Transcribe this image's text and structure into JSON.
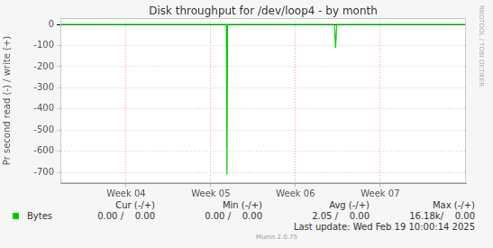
{
  "chart_data": {
    "type": "line",
    "title": "Disk throughput for /dev/loop4 - by month",
    "ylabel": "Pr second read (-) / write (+)",
    "x": [
      0,
      13.75,
      13.8,
      13.85,
      22.7,
      22.8,
      22.9,
      33.6
    ],
    "series": [
      {
        "name": "Bytes",
        "color": "#00cc00",
        "values": [
          0,
          0,
          -710,
          0,
          0,
          -110,
          0,
          0
        ]
      }
    ],
    "xlim": [
      0,
      33.6
    ],
    "xticks": [
      {
        "value": 5.45,
        "label": "Week 04"
      },
      {
        "value": 12.46,
        "label": "Week 05"
      },
      {
        "value": 19.48,
        "label": "Week 06"
      },
      {
        "value": 26.5,
        "label": "Week 07"
      }
    ],
    "ylim": [
      -750,
      30
    ],
    "yticks": [
      -700,
      -600,
      -500,
      -400,
      -300,
      -200,
      -100,
      0
    ],
    "grid": true,
    "legend": "bottom",
    "legend_table": {
      "headers": [
        "Cur (-/+)",
        "Min (-/+)",
        "Avg (-/+)",
        "Max (-/+)"
      ],
      "cells": [
        [
          "0.00 /    0.00",
          "0.00 /    0.00",
          "2.05 /    0.00",
          "16.18k/    0.00"
        ]
      ]
    },
    "footer": "Last update: Wed Feb 19 10:00:14 2025",
    "credit": "Munin 2.0.75",
    "watermark": "RRDTOOL / TOBI OETIKER"
  }
}
